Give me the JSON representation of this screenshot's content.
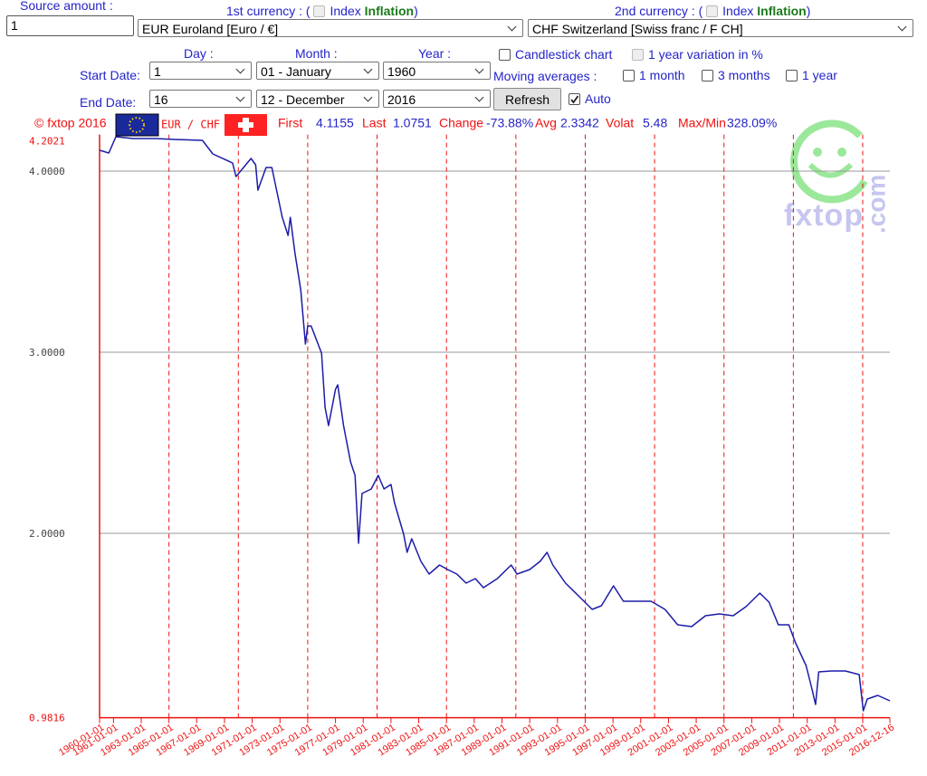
{
  "form": {
    "source_amount": {
      "label": "Source amount :",
      "value": "1"
    },
    "currency1": {
      "label": "1st currency : (",
      "index": "Index",
      "inflation": "Inflation",
      "close": ")",
      "selected": "EUR Euroland [Euro / €]"
    },
    "currency2": {
      "label": "2nd currency : (",
      "index": "Index",
      "inflation": "Inflation",
      "close": ")",
      "selected": "CHF Switzerland [Swiss franc / F CH]"
    },
    "headers": {
      "day": "Day :",
      "month": "Month :",
      "year": "Year :"
    },
    "start_date": {
      "label": "Start Date:",
      "day": "1",
      "month": "01 - January",
      "year": "1960"
    },
    "end_date": {
      "label": "End Date:",
      "day": "16",
      "month": "12 - December",
      "year": "2016"
    },
    "candlestick": {
      "label": "Candlestick chart",
      "checked": false
    },
    "year_variation": {
      "label": "1 year variation in %",
      "checked": false
    },
    "moving_averages": {
      "label": "Moving averages :",
      "options": [
        {
          "label": "1 month",
          "checked": false
        },
        {
          "label": "3 months",
          "checked": false
        },
        {
          "label": "1 year",
          "checked": false
        }
      ]
    },
    "refresh": "Refresh",
    "auto": {
      "label": "Auto",
      "checked": true
    }
  },
  "chart_data": {
    "type": "line",
    "copyright": "© fxtop 2016",
    "pair": "EUR / CHF",
    "logo": "fxtop",
    "logo_suffix": ".com",
    "stats": [
      {
        "label": "First",
        "value": "4.1155"
      },
      {
        "label": "Last",
        "value": "1.0751"
      },
      {
        "label": "Change",
        "value": "-73.88%"
      },
      {
        "label": "Avg",
        "value": "2.3342"
      },
      {
        "label": "Volat",
        "value": "5.48"
      },
      {
        "label": "Max/Min",
        "value": "328.09%"
      }
    ],
    "x": [
      "1960-01-01",
      "1960-09-01",
      "1961-03-06",
      "1962-06-01",
      "1964-01-01",
      "1965-06-01",
      "1967-06-01",
      "1968-03-01",
      "1969-08-01",
      "1969-11-01",
      "1970-12-01",
      "1971-04-01",
      "1971-06-01",
      "1972-01-01",
      "1972-06-01",
      "1973-03-01",
      "1973-08-01",
      "1973-10-01",
      "1974-02-01",
      "1974-07-01",
      "1974-11-01",
      "1975-01-01",
      "1975-04-01",
      "1976-01-01",
      "1976-04-01",
      "1976-07-01",
      "1977-01-01",
      "1977-03-01",
      "1977-08-01",
      "1978-02-01",
      "1978-06-01",
      "1978-09-01",
      "1978-12-01",
      "1979-08-01",
      "1980-02-01",
      "1980-07-01",
      "1981-01-01",
      "1981-04-01",
      "1981-12-01",
      "1982-03-01",
      "1982-07-01",
      "1983-03-01",
      "1983-10-01",
      "1984-07-01",
      "1985-02-01",
      "1985-10-01",
      "1986-06-01",
      "1987-02-01",
      "1987-09-01",
      "1988-09-01",
      "1989-09-01",
      "1990-02-01",
      "1991-01-01",
      "1991-10-01",
      "1992-04-01",
      "1992-09-01",
      "1993-08-01",
      "1994-08-01",
      "1995-07-01",
      "1996-03-01",
      "1997-01-15",
      "1997-10-01",
      "1998-10-01",
      "1999-10-01",
      "2000-10-01",
      "2001-09-01",
      "2002-09-01",
      "2003-09-01",
      "2004-09-01",
      "2005-09-01",
      "2006-08-01",
      "2007-08-01",
      "2008-04-01",
      "2008-12-01",
      "2009-09-01",
      "2010-03-01",
      "2010-12-01",
      "2011-05-01",
      "2011-08-09",
      "2011-11-01",
      "2012-10-01",
      "2013-10-01",
      "2014-10-01",
      "2015-01-15",
      "2015-05-01",
      "2016-02-01",
      "2016-12-16"
    ],
    "series": [
      {
        "color": "#1c1ca8",
        "values": [
          4.1155,
          4.1,
          4.19,
          4.18,
          4.18,
          4.175,
          4.17,
          4.095,
          4.045,
          3.97,
          4.07,
          4.035,
          3.895,
          4.02,
          4.02,
          3.745,
          3.645,
          3.745,
          3.545,
          3.345,
          3.045,
          3.145,
          3.145,
          2.995,
          2.695,
          2.595,
          2.795,
          2.82,
          2.595,
          2.395,
          2.32,
          1.945,
          2.22,
          2.245,
          2.32,
          2.245,
          2.27,
          2.17,
          1.995,
          1.895,
          1.97,
          1.845,
          1.775,
          1.825,
          1.8,
          1.775,
          1.725,
          1.75,
          1.7,
          1.75,
          1.825,
          1.775,
          1.8,
          1.845,
          1.895,
          1.825,
          1.725,
          1.65,
          1.58,
          1.6,
          1.71,
          1.625,
          1.625,
          1.625,
          1.58,
          1.495,
          1.485,
          1.545,
          1.555,
          1.545,
          1.595,
          1.67,
          1.62,
          1.495,
          1.495,
          1.395,
          1.27,
          1.145,
          1.055,
          1.235,
          1.24,
          1.24,
          1.22,
          1.02,
          1.085,
          1.105,
          1.0751
        ]
      }
    ],
    "xlim": [
      "1960-01-01",
      "2016-12-16"
    ],
    "xticks": [
      "1960-01-01",
      "1961-01-01",
      "1963-01-01",
      "1965-01-01",
      "1967-01-01",
      "1969-01-01",
      "1971-01-01",
      "1973-01-01",
      "1975-01-01",
      "1977-01-01",
      "1979-01-01",
      "1981-01-01",
      "1983-01-01",
      "1985-01-01",
      "1987-01-01",
      "1989-01-01",
      "1991-01-01",
      "1993-01-01",
      "1995-01-01",
      "1997-01-01",
      "1999-01-01",
      "2001-01-01",
      "2003-01-01",
      "2005-01-01",
      "2007-01-01",
      "2009-01-01",
      "2011-01-01",
      "2013-01-01",
      "2015-01-01",
      "2016-12-16"
    ],
    "x_gridlines": [
      "1965-01-01",
      "1970-01-01",
      "1975-01-01",
      "1980-01-01",
      "1985-01-01",
      "1990-01-01",
      "1995-01-01",
      "2000-01-01",
      "2005-01-01",
      "2010-01-01",
      "2015-01-01"
    ],
    "ylim": [
      0.9816,
      4.2021
    ],
    "yticks": [
      0.9816,
      {
        "value": 2,
        "label": "2.0000"
      },
      {
        "value": 3,
        "label": "3.0000"
      },
      {
        "value": 4,
        "label": "4.0000"
      },
      4.2021
    ],
    "grid": true
  }
}
